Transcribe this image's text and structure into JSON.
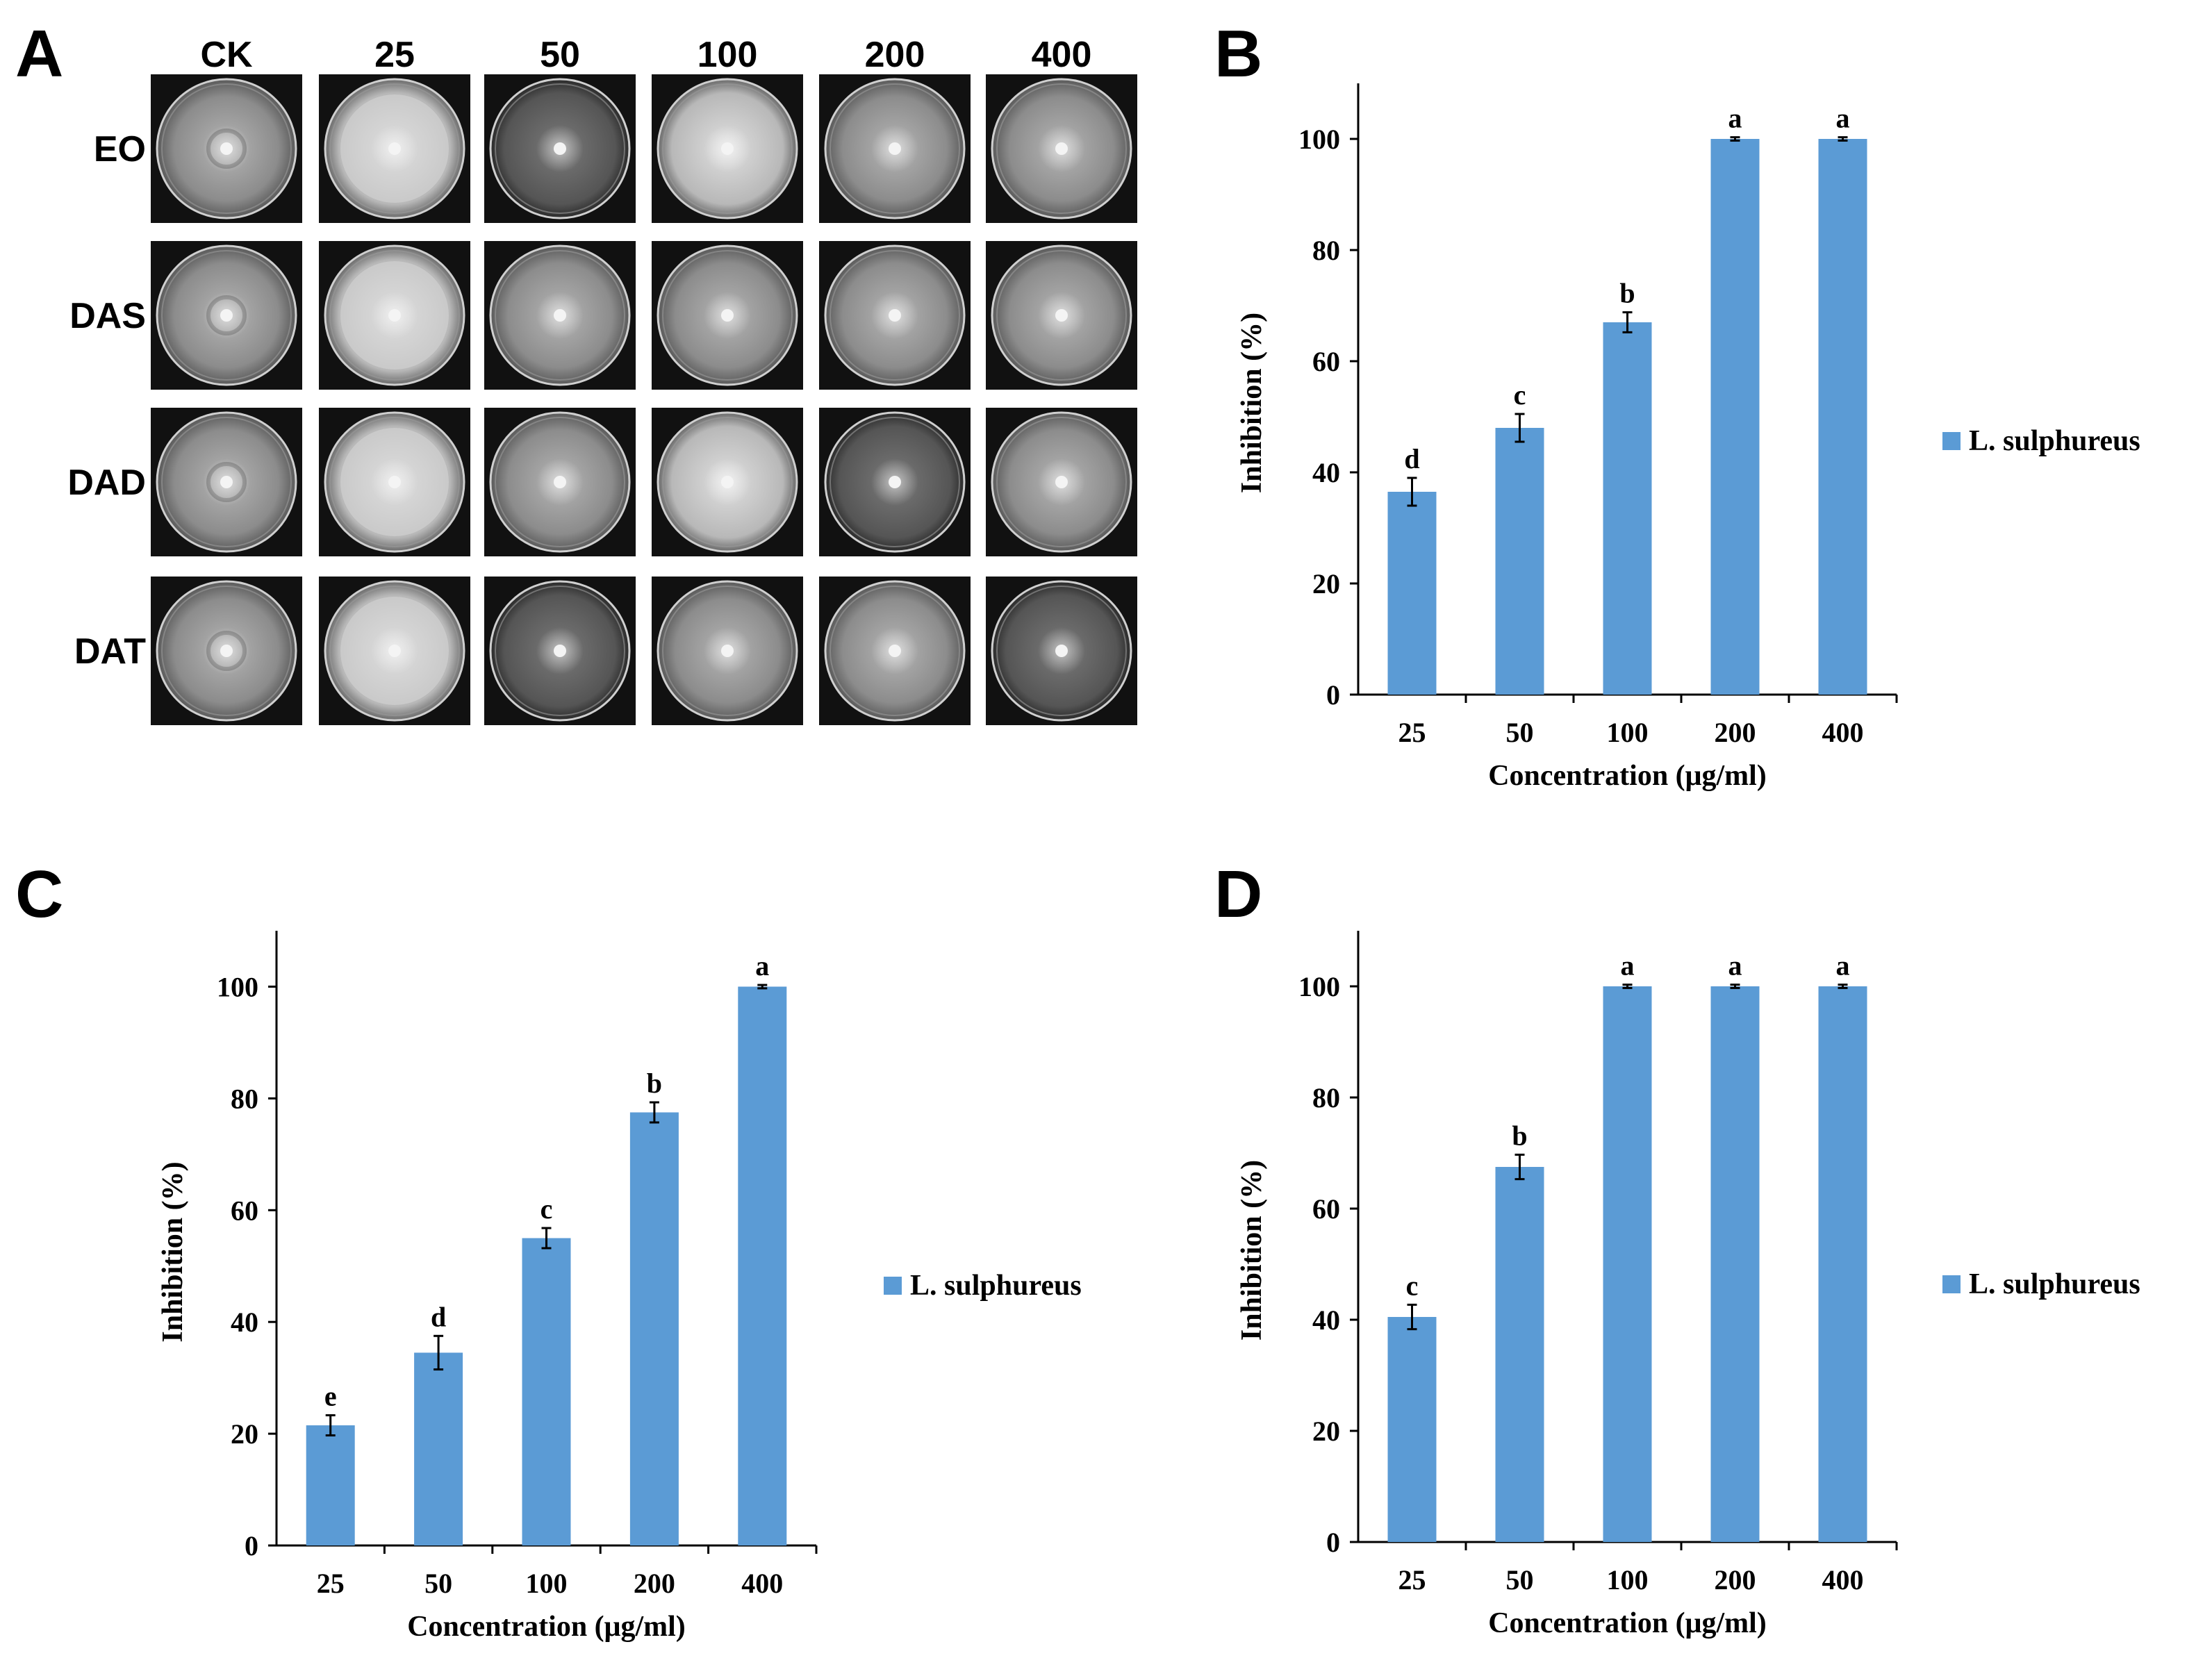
{
  "panel_a": {
    "letter": "A",
    "columns": [
      "CK",
      "25",
      "50",
      "100",
      "200",
      "400"
    ],
    "rows": [
      "EO",
      "DAS",
      "DAD",
      "DAT"
    ]
  },
  "colors": {
    "bar": "#5b9bd5",
    "axis": "#000000",
    "plate_bg": "#111111"
  },
  "chart_data": [
    {
      "panel": "B",
      "type": "bar",
      "categories": [
        "25",
        "50",
        "100",
        "200",
        "400"
      ],
      "series": [
        {
          "name": "L. sulphureus",
          "values": [
            36.5,
            48,
            67,
            100,
            100
          ],
          "errors": [
            2.5,
            2.5,
            1.8,
            0.3,
            0.3
          ],
          "significance": [
            "d",
            "c",
            "b",
            "a",
            "a"
          ]
        }
      ],
      "xlabel": "Concentration (μg/ml)",
      "ylabel": "Inhibition (%)",
      "yticks": [
        "0",
        "20",
        "40",
        "60",
        "80",
        "100"
      ],
      "ylim": [
        0,
        110
      ],
      "legend": "L. sulphureus"
    },
    {
      "panel": "C",
      "type": "bar",
      "categories": [
        "25",
        "50",
        "100",
        "200",
        "400"
      ],
      "series": [
        {
          "name": "L. sulphureus",
          "values": [
            21.5,
            34.5,
            55,
            77.5,
            100
          ],
          "errors": [
            1.8,
            3,
            1.8,
            1.8,
            0.3
          ],
          "significance": [
            "e",
            "d",
            "c",
            "b",
            "a"
          ]
        }
      ],
      "xlabel": "Concentration (μg/ml)",
      "ylabel": "Inhibition (%)",
      "yticks": [
        "0",
        "20",
        "40",
        "60",
        "80",
        "100"
      ],
      "ylim": [
        0,
        110
      ],
      "legend": "L. sulphureus"
    },
    {
      "panel": "D",
      "type": "bar",
      "categories": [
        "25",
        "50",
        "100",
        "200",
        "400"
      ],
      "series": [
        {
          "name": "L. sulphureus",
          "values": [
            40.5,
            67.5,
            100,
            100,
            100
          ],
          "errors": [
            2.2,
            2.2,
            0.3,
            0.3,
            0.3
          ],
          "significance": [
            "c",
            "b",
            "a",
            "a",
            "a"
          ]
        }
      ],
      "xlabel": "Concentration (μg/ml)",
      "ylabel": "Inhibition (%)",
      "yticks": [
        "0",
        "20",
        "40",
        "60",
        "80",
        "100"
      ],
      "ylim": [
        0,
        110
      ],
      "legend": "L. sulphureus"
    }
  ]
}
